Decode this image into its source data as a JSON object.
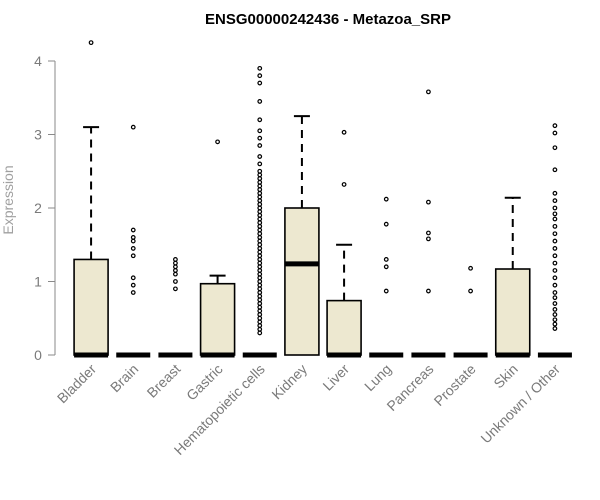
{
  "chart_data": {
    "type": "boxplot",
    "title": "ENSG00000242436 - Metazoa_SRP",
    "xlabel": "",
    "ylabel": "Expression",
    "ylim": [
      0,
      4.3
    ],
    "yticks": [
      0,
      1,
      2,
      3,
      4
    ],
    "box_color": "#ede8d0",
    "categories": [
      "Bladder",
      "Brain",
      "Breast",
      "Gastric",
      "Hematopoietic cells",
      "Kidney",
      "Liver",
      "Lung",
      "Pancreas",
      "Prostate",
      "Skin",
      "Unknown / Other"
    ],
    "boxes": [
      {
        "category": "Bladder",
        "min": 0,
        "q1": 0,
        "median": 0,
        "q3": 1.3,
        "max": 3.1,
        "outliers": [
          4.25
        ]
      },
      {
        "category": "Brain",
        "min": 0,
        "q1": 0,
        "median": 0,
        "q3": 0,
        "max": 0,
        "outliers": [
          3.1,
          1.7,
          1.6,
          1.55,
          1.45,
          1.35,
          1.05,
          0.95,
          0.85
        ]
      },
      {
        "category": "Breast",
        "min": 0,
        "q1": 0,
        "median": 0,
        "q3": 0,
        "max": 0,
        "outliers": [
          1.3,
          1.25,
          1.2,
          1.15,
          1.1,
          1.0,
          0.9
        ]
      },
      {
        "category": "Gastric",
        "min": 0,
        "q1": 0,
        "median": 0,
        "q3": 0.97,
        "max": 1.08,
        "outliers": [
          2.9
        ]
      },
      {
        "category": "Hematopoietic cells",
        "min": 0,
        "q1": 0,
        "median": 0,
        "q3": 0,
        "max": 0,
        "outliers": [
          3.9,
          3.8,
          3.7,
          3.45,
          3.2,
          3.05,
          2.95,
          2.85,
          2.7,
          2.6,
          2.5,
          2.45,
          2.4,
          2.35,
          2.3,
          2.25,
          2.2,
          2.15,
          2.1,
          2.05,
          2.0,
          1.95,
          1.9,
          1.85,
          1.8,
          1.75,
          1.7,
          1.65,
          1.6,
          1.55,
          1.5,
          1.45,
          1.4,
          1.35,
          1.3,
          1.25,
          1.2,
          1.15,
          1.1,
          1.05,
          1.0,
          0.95,
          0.9,
          0.85,
          0.8,
          0.75,
          0.7,
          0.65,
          0.6,
          0.55,
          0.5,
          0.45,
          0.4,
          0.35,
          0.3
        ]
      },
      {
        "category": "Kidney",
        "min": 0,
        "q1": 0,
        "median": 1.24,
        "q3": 2.0,
        "max": 3.25,
        "outliers": []
      },
      {
        "category": "Liver",
        "min": 0,
        "q1": 0,
        "median": 0,
        "q3": 0.74,
        "max": 1.5,
        "outliers": [
          3.03,
          2.32
        ]
      },
      {
        "category": "Lung",
        "min": 0,
        "q1": 0,
        "median": 0,
        "q3": 0,
        "max": 0,
        "outliers": [
          2.12,
          1.78,
          1.3,
          1.2,
          0.87
        ]
      },
      {
        "category": "Pancreas",
        "min": 0,
        "q1": 0,
        "median": 0,
        "q3": 0,
        "max": 0,
        "outliers": [
          3.58,
          2.08,
          1.66,
          1.58,
          0.87
        ]
      },
      {
        "category": "Prostate",
        "min": 0,
        "q1": 0,
        "median": 0,
        "q3": 0,
        "max": 0,
        "outliers": [
          1.18,
          0.87
        ]
      },
      {
        "category": "Skin",
        "min": 0,
        "q1": 0,
        "median": 0,
        "q3": 1.17,
        "max": 2.14,
        "outliers": []
      },
      {
        "category": "Unknown / Other",
        "min": 0,
        "q1": 0,
        "median": 0,
        "q3": 0,
        "max": 0,
        "outliers": [
          3.12,
          3.02,
          2.82,
          2.52,
          2.2,
          2.1,
          2.0,
          1.92,
          1.85,
          1.75,
          1.65,
          1.55,
          1.45,
          1.35,
          1.25,
          1.15,
          1.05,
          0.95,
          0.85,
          0.78,
          0.7,
          0.62,
          0.55,
          0.48,
          0.42,
          0.36
        ]
      }
    ]
  }
}
